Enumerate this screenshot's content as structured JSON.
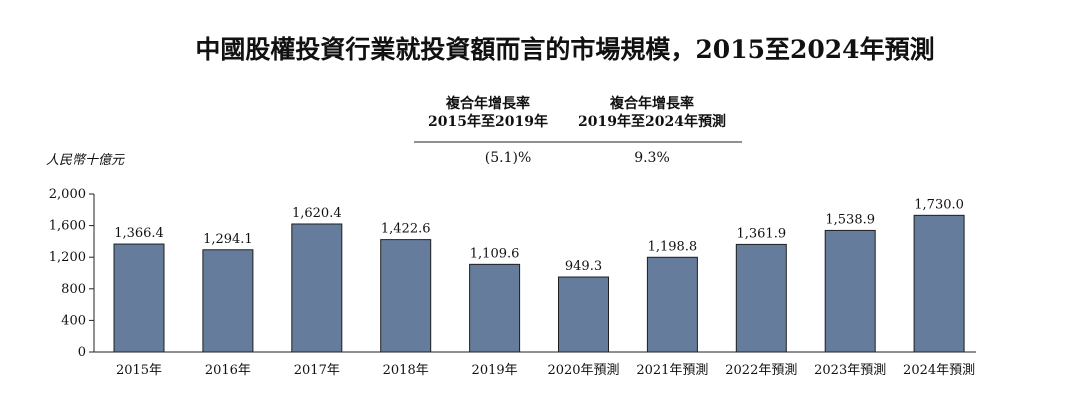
{
  "colors": {
    "bar_fill": "#667c9c",
    "bar_stroke": "#1f1f1f",
    "axis": "#222222",
    "text": "#111111"
  },
  "cagr": {
    "col1": {
      "line1": "複合年增長率",
      "line2": "2015年至2019年",
      "value": "(5.1)%"
    },
    "col2": {
      "line1": "複合年增長率",
      "line2": "2019年至2024年預測",
      "value": "9.3%"
    }
  },
  "chart_data": {
    "type": "bar",
    "title": "中國股權投資行業就投資額而言的市場規模，2015至2024年預測",
    "ylabel": "人民幣十億元",
    "xlabel": "",
    "ylim": [
      0,
      2000
    ],
    "yticks": [
      0,
      400,
      800,
      1200,
      1600,
      2000
    ],
    "ytick_labels": [
      "0",
      "400",
      "800",
      "1,200",
      "1,600",
      "2,000"
    ],
    "grid": false,
    "legend": "none",
    "categories": [
      "2015年",
      "2016年",
      "2017年",
      "2018年",
      "2019年",
      "2020年預測",
      "2021年預測",
      "2022年預測",
      "2023年預測",
      "2024年預測"
    ],
    "values": [
      1366.4,
      1294.1,
      1620.4,
      1422.6,
      1109.6,
      949.3,
      1198.8,
      1361.9,
      1538.9,
      1730.0
    ],
    "data_labels": [
      "1,366.4",
      "1,294.1",
      "1,620.4",
      "1,422.6",
      "1,109.6",
      "949.3",
      "1,198.8",
      "1,361.9",
      "1,538.9",
      "1,730.0"
    ]
  }
}
